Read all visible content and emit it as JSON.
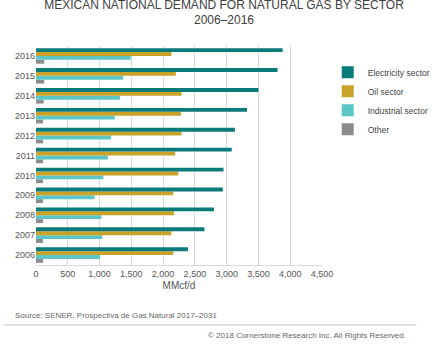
{
  "chart_data": {
    "type": "bar",
    "orientation": "horizontal",
    "title": "MEXICAN NATIONAL DEMAND FOR NATURAL GAS BY SECTOR",
    "subtitle": "2006–2016",
    "x_label": "MMcf/d",
    "categories": [
      "2006",
      "2007",
      "2008",
      "2009",
      "2010",
      "2011",
      "2012",
      "2013",
      "2014",
      "2015",
      "2016"
    ],
    "series": [
      {
        "name": "Electricity sector",
        "color": "#0b7a7a",
        "values": [
          2390,
          2650,
          2800,
          2940,
          2950,
          3080,
          3130,
          3320,
          3500,
          3800,
          3880
        ]
      },
      {
        "name": "Oil sector",
        "color": "#c9a227",
        "values": [
          2160,
          2130,
          2170,
          2160,
          2240,
          2190,
          2290,
          2280,
          2290,
          2200,
          2130
        ]
      },
      {
        "name": "Industrial sector",
        "color": "#5cc6c6",
        "values": [
          1010,
          1040,
          1030,
          920,
          1060,
          1130,
          1180,
          1240,
          1320,
          1370,
          1490
        ]
      },
      {
        "name": "Other",
        "color": "#8c8c8c",
        "values": [
          110,
          110,
          110,
          110,
          110,
          110,
          110,
          110,
          120,
          130,
          130
        ]
      }
    ],
    "xlim": [
      0,
      4500
    ],
    "xticks": [
      0,
      500,
      {
        "value": 1000,
        "label": "1,000"
      },
      {
        "value": 1500,
        "label": "1,500"
      },
      {
        "value": 2000,
        "label": "2,000"
      },
      {
        "value": 2500,
        "label": "2,500"
      },
      {
        "value": 3000,
        "label": "3,000"
      },
      {
        "value": 3500,
        "label": "3,500"
      },
      {
        "value": 4000,
        "label": "4,000"
      },
      {
        "value": 4500,
        "label": "4,500"
      }
    ],
    "grid": true,
    "legend": "right",
    "annotations": [
      "Source: SENER, Prospectiva de Gas Natural 2017–2031",
      "© 2018 Cornerstone Research Inc. All Rights Reserved."
    ]
  }
}
